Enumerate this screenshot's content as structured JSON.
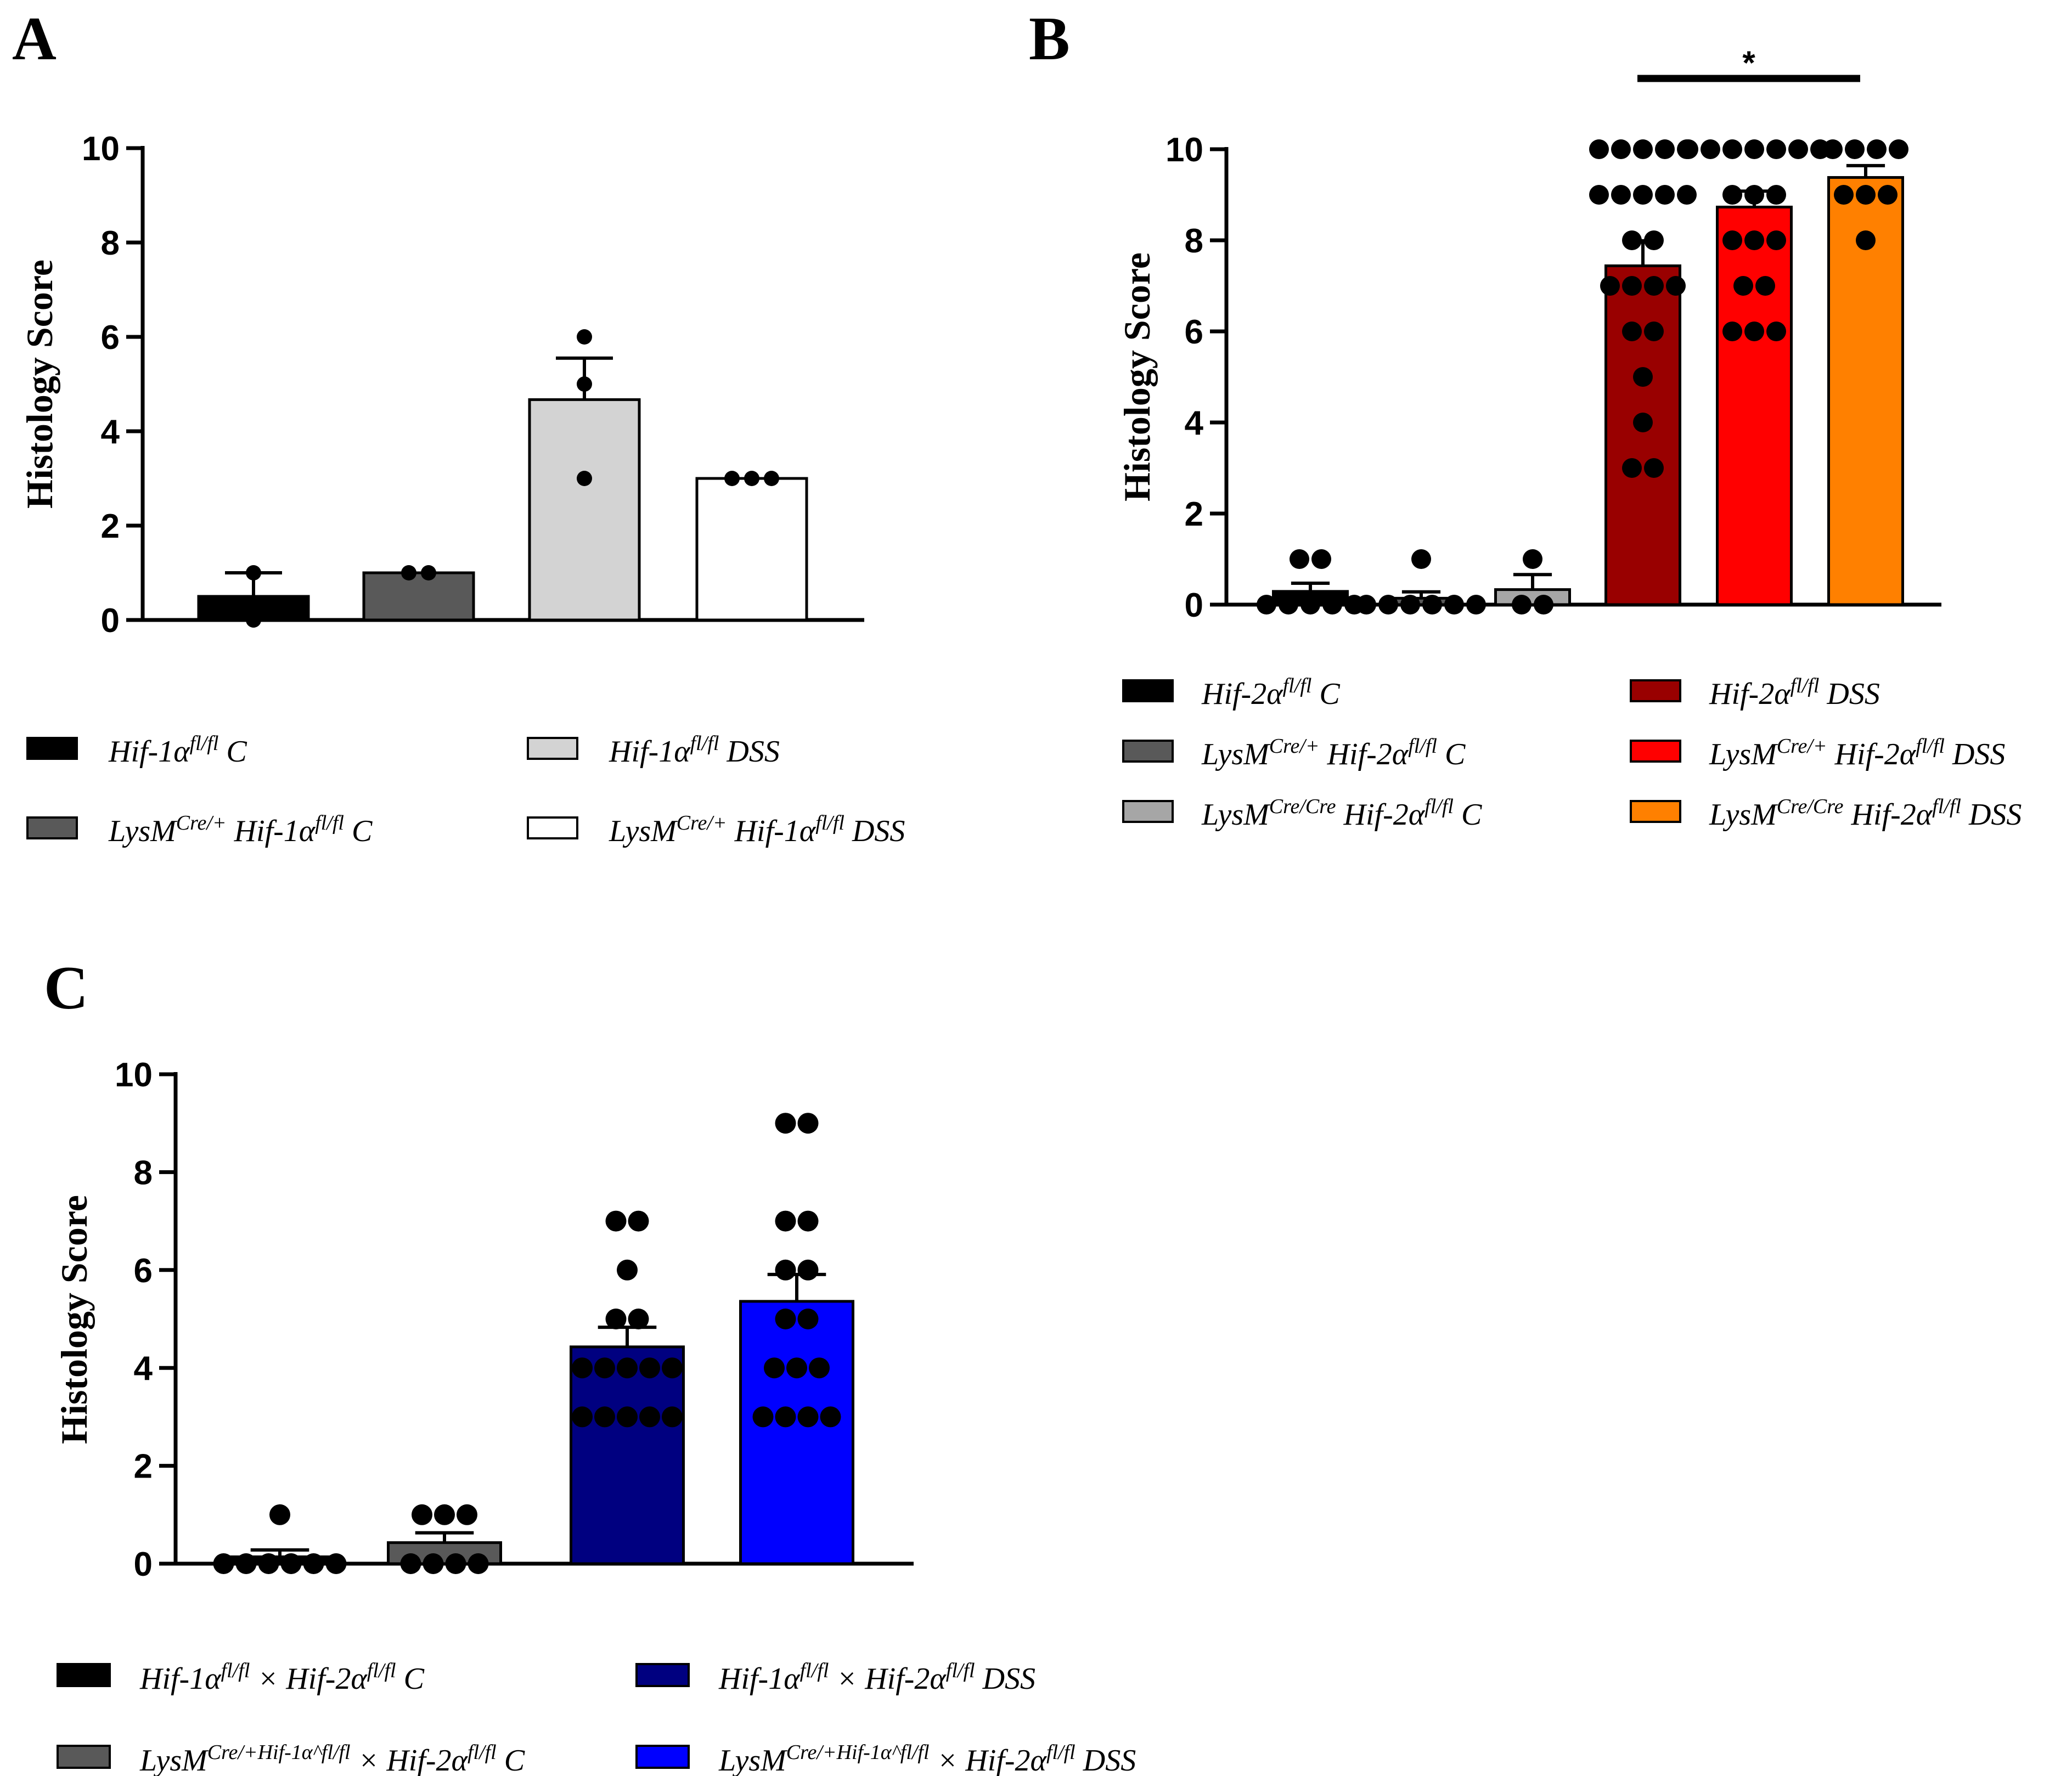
{
  "chart_data": [
    {
      "type": "bar",
      "panel": "A",
      "ylabel": "Histology Score",
      "ylim": [
        0,
        10
      ],
      "yticks": [
        0,
        2,
        4,
        6,
        8,
        10
      ],
      "legend_placement": "bottom",
      "categories": [
        "Hif-1α^fl/fl C",
        "LysM^Cre/+ Hif-1α^fl/fl C",
        "Hif-1α^fl/fl DSS",
        "LysM^Cre/+ Hif-1α^fl/fl DSS"
      ],
      "series": [
        {
          "name": "Hif-1α^fl/fl C",
          "color": "#000000",
          "value": 0.5,
          "sem": 0.5,
          "points": [
            0,
            1
          ]
        },
        {
          "name": "LysM^Cre/+ Hif-1α^fl/fl C",
          "color": "#595959",
          "value": 1.0,
          "sem": 0,
          "points": [
            1,
            1
          ]
        },
        {
          "name": "Hif-1α^fl/fl DSS",
          "color": "#d3d3d3",
          "value": 4.67,
          "sem": 0.88,
          "points": [
            3,
            5,
            6
          ]
        },
        {
          "name": "LysM^Cre/+ Hif-1α^fl/fl DSS",
          "color": "#ffffff",
          "value": 3.0,
          "sem": 0,
          "points": [
            3,
            3,
            3
          ]
        }
      ]
    },
    {
      "type": "bar",
      "panel": "B",
      "ylabel": "Histology Score",
      "ylim": [
        0,
        10
      ],
      "yticks": [
        0,
        2,
        4,
        6,
        8,
        10
      ],
      "legend_placement": "bottom",
      "significance": {
        "from": 3,
        "to": 5,
        "label": "*"
      },
      "categories": [
        "Hif-2α^fl/fl C",
        "LysM^Cre/+ Hif-2α^fl/fl C",
        "LysM^Cre/Cre Hif-2α^fl/fl C",
        "Hif-2α^fl/fl DSS",
        "LysM^Cre/+ Hif-2α^fl/fl DSS",
        "LysM^Cre/Cre Hif-2α^fl/fl DSS"
      ],
      "series": [
        {
          "name": "Hif-2α^fl/fl C",
          "color": "#000000",
          "value": 0.29,
          "sem": 0.18,
          "points": [
            1,
            1,
            0,
            0,
            0,
            0,
            0
          ]
        },
        {
          "name": "LysM^Cre/+ Hif-2α^fl/fl C",
          "color": "#595959",
          "value": 0.14,
          "sem": 0.14,
          "points": [
            1,
            0,
            0,
            0,
            0,
            0,
            0
          ]
        },
        {
          "name": "LysM^Cre/Cre Hif-2α^fl/fl C",
          "color": "#a6a6a6",
          "value": 0.33,
          "sem": 0.33,
          "points": [
            1,
            0,
            0
          ]
        },
        {
          "name": "Hif-2α^fl/fl DSS",
          "color": "#990000",
          "value": 7.44,
          "sem": 0.55,
          "points": [
            10,
            10,
            10,
            10,
            10,
            9,
            9,
            9,
            9,
            9,
            8,
            8,
            7,
            7,
            7,
            7,
            6,
            6,
            5,
            4,
            3,
            3
          ]
        },
        {
          "name": "LysM^Cre/+ Hif-2α^fl/fl DSS",
          "color": "#ff0000",
          "value": 8.73,
          "sem": 0.35,
          "points": [
            10,
            10,
            10,
            10,
            10,
            10,
            10,
            9,
            9,
            9,
            8,
            8,
            8,
            7,
            7,
            6,
            6,
            6
          ]
        },
        {
          "name": "LysM^Cre/Cre Hif-2α^fl/fl DSS",
          "color": "#ff8000",
          "value": 9.38,
          "sem": 0.26,
          "points": [
            10,
            10,
            10,
            10,
            9,
            9,
            9,
            8
          ]
        }
      ]
    },
    {
      "type": "bar",
      "panel": "C",
      "ylabel": "Histology Score",
      "ylim": [
        0,
        10
      ],
      "yticks": [
        0,
        2,
        4,
        6,
        8,
        10
      ],
      "legend_placement": "bottom",
      "categories": [
        "Hif-1α^fl/fl × Hif-2α^fl/fl C",
        "LysM^Cre/+Hif-1α^fl/fl × Hif-2α^fl/fl C",
        "Hif-1α^fl/fl × Hif-2α^fl/fl DSS",
        "LysM^Cre/+Hif-1α^fl/fl × Hif-2α^fl/fl DSS"
      ],
      "series": [
        {
          "name": "Hif-1α^fl/fl × Hif-2α^fl/fl C",
          "color": "#000000",
          "value": 0.14,
          "sem": 0.14,
          "points": [
            1,
            0,
            0,
            0,
            0,
            0,
            0
          ]
        },
        {
          "name": "LysM^Cre/+Hif-1α^fl/fl × Hif-2α^fl/fl C",
          "color": "#595959",
          "value": 0.43,
          "sem": 0.2,
          "points": [
            1,
            1,
            1,
            0,
            0,
            0,
            0
          ]
        },
        {
          "name": "Hif-1α^fl/fl × Hif-2α^fl/fl DSS",
          "color": "#000080",
          "value": 4.43,
          "sem": 0.4,
          "points": [
            7,
            7,
            6,
            5,
            5,
            4,
            4,
            4,
            4,
            4,
            3,
            3,
            3,
            3,
            3
          ]
        },
        {
          "name": "LysM^Cre/+Hif-1α^fl/fl × Hif-2α^fl/fl DSS",
          "color": "#0000ff",
          "value": 5.36,
          "sem": 0.55,
          "points": [
            9,
            9,
            7,
            7,
            6,
            6,
            5,
            5,
            4,
            4,
            4,
            3,
            3,
            3,
            3
          ]
        }
      ]
    }
  ]
}
